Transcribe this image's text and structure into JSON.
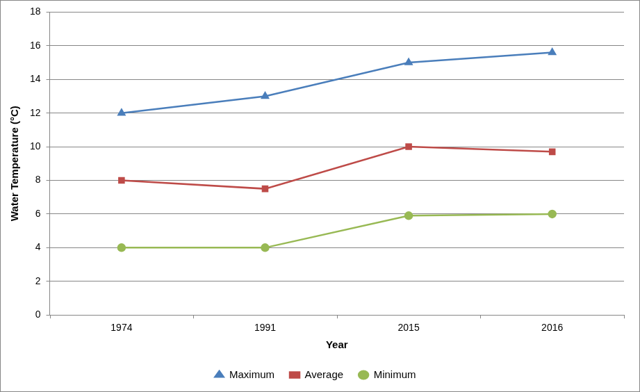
{
  "chart_data": {
    "type": "line",
    "x_label": "Year",
    "y_label": "Water Temperature (°C)",
    "categories": [
      "1974",
      "1991",
      "2015",
      "2016"
    ],
    "series": [
      {
        "name": "Maximum",
        "color": "#4a7ebb",
        "marker": "triangle",
        "line_style": "solid",
        "values": [
          12,
          13,
          15,
          15.6
        ]
      },
      {
        "name": "Average",
        "color": "#be4b48",
        "marker": "square",
        "line_style": "solid",
        "values": [
          8,
          7.5,
          10,
          9.7
        ]
      },
      {
        "name": "Minimum",
        "color": "#98b954",
        "marker": "circle",
        "line_style": "solid",
        "values": [
          4,
          4,
          5.9,
          6
        ]
      }
    ],
    "ylim": [
      0,
      18
    ],
    "yticks": [
      0,
      2,
      4,
      6,
      8,
      10,
      12,
      14,
      16,
      18
    ],
    "grid": true,
    "legend": "bottom"
  }
}
